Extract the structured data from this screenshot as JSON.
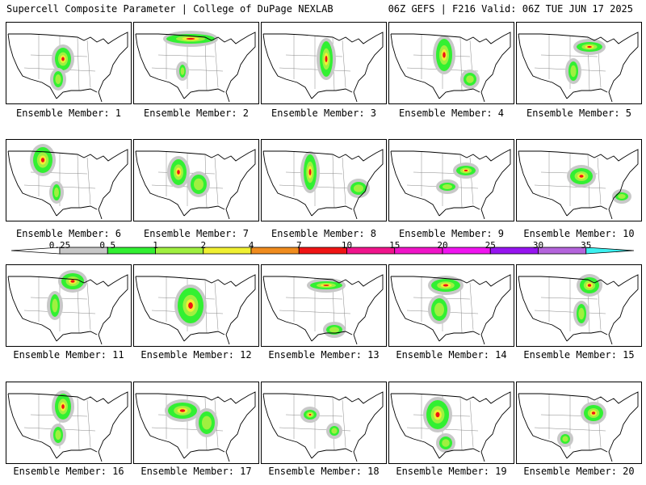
{
  "header": {
    "title": "Supercell Composite Parameter | College of DuPage NEXLAB",
    "run_info": "06Z GEFS | F216 Valid: 06Z TUE JUN 17 2025"
  },
  "colors": {
    "background": "#ffffff",
    "border": "#000000"
  },
  "colorbar": {
    "labels": [
      "0.25",
      "0.5",
      "1",
      "2",
      "4",
      "7",
      "10",
      "15",
      "20",
      "25",
      "30",
      "35"
    ],
    "segment_colors": [
      "#c8c8c8",
      "#32f032",
      "#a0f040",
      "#f0f032",
      "#f08c1e",
      "#f01414",
      "#f0148c",
      "#f014c8",
      "#f014f0",
      "#9614f0",
      "#b464dc",
      "#3cf0f0"
    ]
  },
  "members": [
    {
      "label": "Ensemble Member: 1"
    },
    {
      "label": "Ensemble Member: 2"
    },
    {
      "label": "Ensemble Member: 3"
    },
    {
      "label": "Ensemble Member: 4"
    },
    {
      "label": "Ensemble Member: 5"
    },
    {
      "label": "Ensemble Member: 6"
    },
    {
      "label": "Ensemble Member: 7"
    },
    {
      "label": "Ensemble Member: 8"
    },
    {
      "label": "Ensemble Member: 9"
    },
    {
      "label": "Ensemble Member: 10"
    },
    {
      "label": "Ensemble Member: 11"
    },
    {
      "label": "Ensemble Member: 12"
    },
    {
      "label": "Ensemble Member: 13"
    },
    {
      "label": "Ensemble Member: 14"
    },
    {
      "label": "Ensemble Member: 15"
    },
    {
      "label": "Ensemble Member: 16"
    },
    {
      "label": "Ensemble Member: 17"
    },
    {
      "label": "Ensemble Member: 18"
    },
    {
      "label": "Ensemble Member: 19"
    },
    {
      "label": "Ensemble Member: 20"
    }
  ]
}
